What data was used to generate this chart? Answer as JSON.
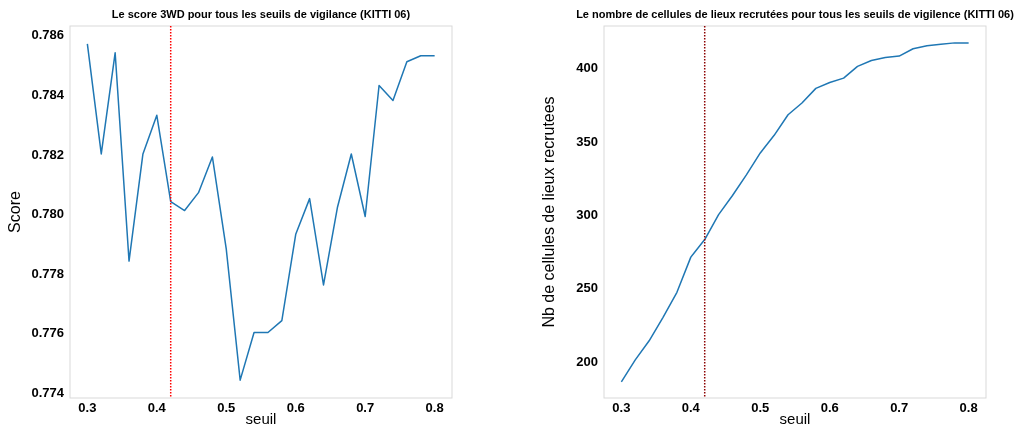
{
  "chart_data": [
    {
      "type": "line",
      "title": "Le score 3WD pour tous les seuils de vigilance (KITTI 06)",
      "xlabel": "seuil",
      "ylabel": "Score",
      "x": [
        0.3,
        0.32,
        0.34,
        0.36,
        0.38,
        0.4,
        0.42,
        0.44,
        0.46,
        0.48,
        0.5,
        0.52,
        0.54,
        0.56,
        0.58,
        0.6,
        0.62,
        0.64,
        0.66,
        0.68,
        0.7,
        0.72,
        0.74,
        0.76,
        0.78,
        0.8
      ],
      "series": [
        {
          "color": "#1f77b4",
          "values": [
            0.7857,
            0.782,
            0.7854,
            0.7784,
            0.782,
            0.7833,
            0.7804,
            0.7801,
            0.7807,
            0.7819,
            0.7788,
            0.7744,
            0.776,
            0.776,
            0.7764,
            0.7793,
            0.7805,
            0.7776,
            0.7802,
            0.782,
            0.7799,
            0.7843,
            0.7838,
            0.7851,
            0.7853,
            0.7853
          ]
        }
      ],
      "xlim": [
        0.275,
        0.825
      ],
      "xticks": [
        0.3,
        0.4,
        0.5,
        0.6,
        0.7,
        0.8
      ],
      "ylim": [
        0.7738,
        0.7863
      ],
      "yticks": [
        0.774,
        0.776,
        0.778,
        {
          "value": 0.78,
          "label": "0.780"
        },
        0.782,
        0.784,
        0.786
      ],
      "ref_lines": [
        {
          "axis": "x",
          "value": 0.42,
          "color": "#ff0000",
          "line_style": "dotted"
        }
      ],
      "grid": false
    },
    {
      "type": "line",
      "title": "Le nombre de cellules de lieux recrutées pour tous les seuils de vigilence (KITTI 06)",
      "xlabel": "seuil",
      "ylabel": "Nb de cellules de lieux recrutees",
      "x": [
        0.3,
        0.32,
        0.34,
        0.36,
        0.38,
        0.4,
        0.42,
        0.44,
        0.46,
        0.48,
        0.5,
        0.52,
        0.54,
        0.56,
        0.58,
        0.6,
        0.62,
        0.64,
        0.66,
        0.68,
        0.7,
        0.72,
        0.74,
        0.76,
        0.78,
        0.8
      ],
      "series": [
        {
          "color": "#1f77b4",
          "values": [
            186,
            201,
            214,
            230,
            247,
            271,
            283,
            300,
            313,
            327,
            342,
            354,
            368,
            376,
            386,
            390,
            393,
            401,
            405,
            407,
            408,
            413,
            415,
            416,
            417,
            417
          ]
        }
      ],
      "xlim": [
        0.275,
        0.825
      ],
      "xticks": [
        0.3,
        0.4,
        0.5,
        0.6,
        0.7,
        0.8
      ],
      "ylim": [
        175,
        428.5
      ],
      "yticks": [
        200,
        250,
        300,
        350,
        400
      ],
      "ref_lines": [
        {
          "axis": "x",
          "value": 0.42,
          "color": "#8b0000",
          "line_style": "dotted"
        }
      ],
      "grid": false
    }
  ]
}
